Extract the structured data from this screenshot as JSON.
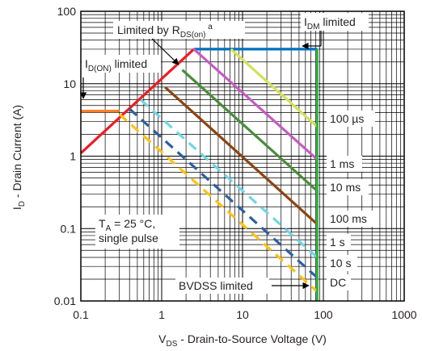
{
  "chart_data": {
    "type": "line",
    "xscale": "log",
    "yscale": "log",
    "xlim": [
      0.1,
      1000
    ],
    "ylim": [
      0.01,
      100
    ],
    "grid": true,
    "xlabel": {
      "main": "V",
      "sub": "DS",
      "rest": " - Drain-to-Source Voltage (V)"
    },
    "ylabel": {
      "main": "I",
      "sub": "D",
      "rest": " - Drain Current (A)"
    },
    "x_ticks": [
      {
        "value": 0.1,
        "label": "0.1"
      },
      {
        "value": 1,
        "label": "1"
      },
      {
        "value": 10,
        "label": "10"
      },
      {
        "value": 100,
        "label": "100"
      },
      {
        "value": 1000,
        "label": "1000"
      }
    ],
    "y_ticks": [
      {
        "value": 0.01,
        "label": "0.01"
      },
      {
        "value": 0.1,
        "label": "0.1"
      },
      {
        "value": 1,
        "label": "1"
      },
      {
        "value": 10,
        "label": "10"
      },
      {
        "value": 100,
        "label": "100"
      }
    ],
    "series": [
      {
        "name": "",
        "color": "#ff7f27",
        "dashed": false,
        "points": [
          [
            0.1,
            4.2
          ],
          [
            0.3,
            4.2
          ]
        ]
      },
      {
        "name": "",
        "color": "#ed1c24",
        "dashed": false,
        "points": [
          [
            0.1,
            1.1
          ],
          [
            2.5,
            30
          ]
        ]
      },
      {
        "name": "",
        "color": "#0070c0",
        "dashed": false,
        "points": [
          [
            2.5,
            30
          ],
          [
            84,
            30
          ]
        ]
      },
      {
        "name": "100 µs",
        "color": "#d4e157",
        "dashed": false,
        "points": [
          [
            7.2,
            30
          ],
          [
            84,
            2.55
          ]
        ]
      },
      {
        "name": "1 ms",
        "color": "#c45cc4",
        "dashed": false,
        "points": [
          [
            2.5,
            30
          ],
          [
            84,
            0.9
          ]
        ]
      },
      {
        "name": "10 ms",
        "color": "#4a8c3a",
        "dashed": false,
        "points": [
          [
            1.8,
            15.5
          ],
          [
            84,
            0.33
          ]
        ]
      },
      {
        "name": "100 ms",
        "color": "#8b4513",
        "dashed": false,
        "points": [
          [
            1.1,
            9
          ],
          [
            84,
            0.115
          ]
        ]
      },
      {
        "name": "1 s",
        "color": "#6ed6e6",
        "dashed": true,
        "points": [
          [
            0.55,
            6
          ],
          [
            84,
            0.04
          ]
        ]
      },
      {
        "name": "10 s",
        "color": "#2e5fa0",
        "dashed": true,
        "points": [
          [
            0.4,
            4.5
          ],
          [
            84,
            0.021
          ]
        ]
      },
      {
        "name": "DC",
        "color": "#ffc20e",
        "dashed": true,
        "points": [
          [
            0.3,
            3.8
          ],
          [
            84,
            0.0135
          ]
        ]
      },
      {
        "name": "BVDSS limited",
        "color": "#39b54a",
        "dashed": false,
        "points": [
          [
            84,
            30
          ],
          [
            84,
            0.01
          ]
        ]
      }
    ],
    "annotations": [
      {
        "text": "Limited by R",
        "sub": "DS(on)",
        "sup": " a"
      },
      {
        "text": "I",
        "sub": "DM",
        "rest": " limited"
      },
      {
        "text": "I",
        "sub": "D(ON)",
        "rest": " limited"
      },
      {
        "text": "100 µs"
      },
      {
        "text": "1 ms"
      },
      {
        "text": "10 ms"
      },
      {
        "text": "100 ms"
      },
      {
        "text": "1 s"
      },
      {
        "text": "10 s"
      },
      {
        "text": "DC"
      },
      {
        "text": "BVDSS limited"
      },
      {
        "line1": "T",
        "line1_sub": "A",
        "line1_rest": " = 25 °C,",
        "line2": "single pulse"
      }
    ]
  }
}
